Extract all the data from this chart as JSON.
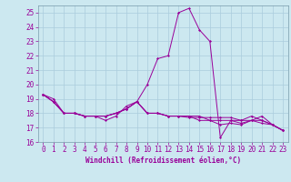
{
  "title": "",
  "xlabel": "Windchill (Refroidissement éolien,°C)",
  "bg_color": "#cce8f0",
  "line_color": "#990099",
  "grid_color": "#aaccdd",
  "xlim": [
    -0.5,
    23.5
  ],
  "ylim": [
    16,
    25.5
  ],
  "yticks": [
    16,
    17,
    18,
    19,
    20,
    21,
    22,
    23,
    24,
    25
  ],
  "xticks": [
    0,
    1,
    2,
    3,
    4,
    5,
    6,
    7,
    8,
    9,
    10,
    11,
    12,
    13,
    14,
    15,
    16,
    17,
    18,
    19,
    20,
    21,
    22,
    23
  ],
  "series": [
    [
      19.3,
      19.0,
      18.0,
      18.0,
      17.8,
      17.8,
      17.5,
      17.8,
      18.5,
      18.8,
      20.0,
      21.8,
      22.0,
      25.0,
      25.3,
      23.8,
      23.0,
      16.3,
      17.5,
      17.3,
      17.5,
      17.8,
      17.2,
      16.8
    ],
    [
      19.3,
      18.8,
      18.0,
      18.0,
      17.8,
      17.8,
      17.8,
      18.0,
      18.3,
      18.8,
      18.0,
      18.0,
      17.8,
      17.8,
      17.7,
      17.7,
      17.7,
      17.7,
      17.7,
      17.5,
      17.5,
      17.5,
      17.2,
      16.8
    ],
    [
      19.3,
      18.8,
      18.0,
      18.0,
      17.8,
      17.8,
      17.8,
      18.0,
      18.3,
      18.8,
      18.0,
      18.0,
      17.8,
      17.8,
      17.8,
      17.5,
      17.5,
      17.2,
      17.3,
      17.2,
      17.5,
      17.3,
      17.2,
      16.8
    ],
    [
      19.3,
      18.8,
      18.0,
      18.0,
      17.8,
      17.8,
      17.8,
      18.0,
      18.3,
      18.8,
      18.0,
      18.0,
      17.8,
      17.8,
      17.8,
      17.8,
      17.5,
      17.5,
      17.5,
      17.5,
      17.8,
      17.5,
      17.2,
      16.8
    ]
  ],
  "tick_fontsize": 5.5,
  "xlabel_fontsize": 5.5
}
